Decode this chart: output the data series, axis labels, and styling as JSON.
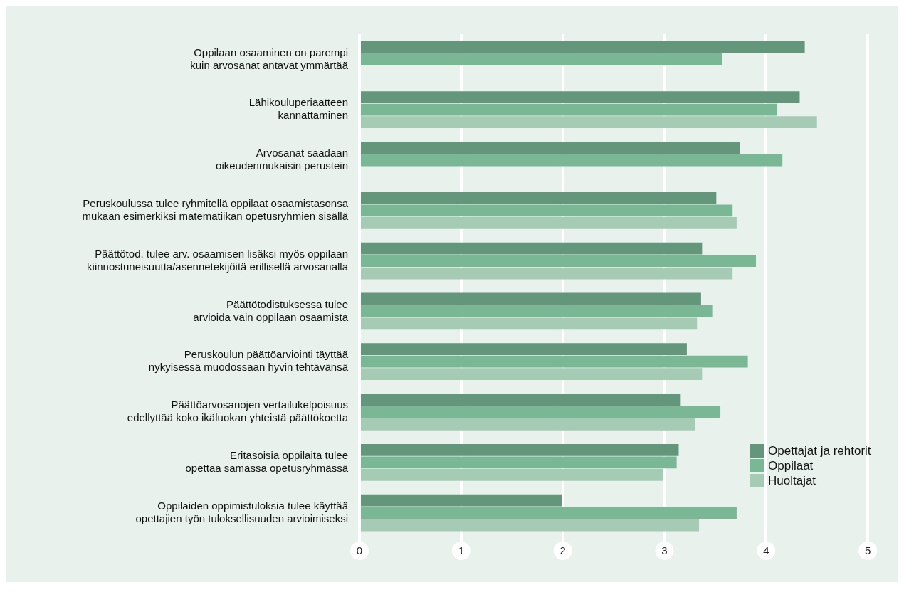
{
  "chart_data": {
    "type": "bar",
    "orientation": "horizontal",
    "categories": [
      "Oppilaan osaaminen on parempi kuin arvosanat antavat ymmärtää",
      "Lähikouluperiaatteen kannattaminen",
      "Arvosanat saadaan oikeudenmukaisin perustein",
      "Peruskoulussa tulee ryhmitellä oppilaat osaamistasonsa mukaan esimerkiksi matematiikan opetusryhmien sisällä",
      "Päättötod. tulee arv. osaamisen lisäksi myös oppilaan kiinnostuneisuutta/asennetekijöitä erillisellä arvosanalla",
      "Päättötodistuksessa tulee arvioida vain oppilaan osaamista",
      "Peruskoulun päättöarviointi täyttää nykyisessä muodossaan hyvin tehtävänsä",
      "Päättöarvosanojen vertailukelpoisuus edellyttää koko ikäluokan yhteistä päättökoetta",
      "Eritasoisia oppilaita tulee opettaa samassa opetusryhmässä",
      "Oppilaiden oppimistuloksia tulee käyttää opettajien työn tuloksellisuuden arvioimiseksi"
    ],
    "series": [
      {
        "name": "Opettajat ja rehtorit",
        "color": "#63967b",
        "values": [
          4.38,
          4.33,
          3.74,
          3.51,
          3.37,
          3.36,
          3.22,
          3.16,
          3.14,
          1.99
        ]
      },
      {
        "name": "Oppilaat",
        "color": "#79b795",
        "values": [
          3.57,
          4.11,
          4.16,
          3.67,
          3.9,
          3.47,
          3.82,
          3.55,
          3.12,
          3.71
        ]
      },
      {
        "name": "Huoltajat",
        "color": "#a6cbb5",
        "values": [
          null,
          4.5,
          null,
          3.71,
          3.67,
          3.32,
          3.37,
          3.3,
          2.99,
          3.34
        ]
      }
    ],
    "xlim": [
      0,
      5.3
    ],
    "xticks": [
      0,
      1,
      2,
      3,
      4,
      5
    ],
    "grid": "x",
    "legend": "bottom right"
  }
}
